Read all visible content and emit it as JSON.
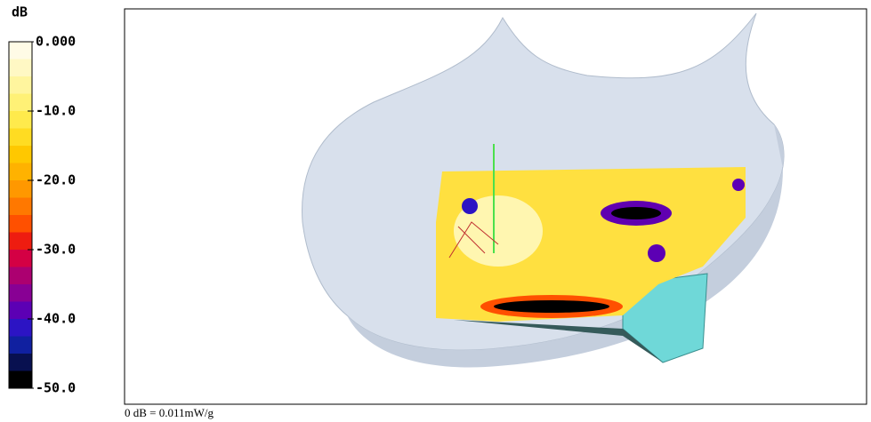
{
  "colorbar": {
    "title": "dB",
    "lim": [
      -50,
      0
    ],
    "ticks": [
      {
        "value": 0,
        "label": "0.000"
      },
      {
        "value": -10,
        "label": "-10.0"
      },
      {
        "value": -20,
        "label": "-20.0"
      },
      {
        "value": -30,
        "label": "-30.0"
      },
      {
        "value": -40,
        "label": "-40.0"
      },
      {
        "value": -50,
        "label": "-50.0"
      }
    ],
    "colors": [
      "#fffbe6",
      "#fff8c4",
      "#fff59e",
      "#fff176",
      "#ffea4c",
      "#ffdc22",
      "#ffc800",
      "#ffb200",
      "#ff9800",
      "#ff7800",
      "#ff5000",
      "#ee1c10",
      "#d40044",
      "#ac0070",
      "#880094",
      "#5c00b4",
      "#2c14c4",
      "#1020a0",
      "#081050",
      "#000000"
    ]
  },
  "footnote": "0 dB = 0.011mW/g"
}
